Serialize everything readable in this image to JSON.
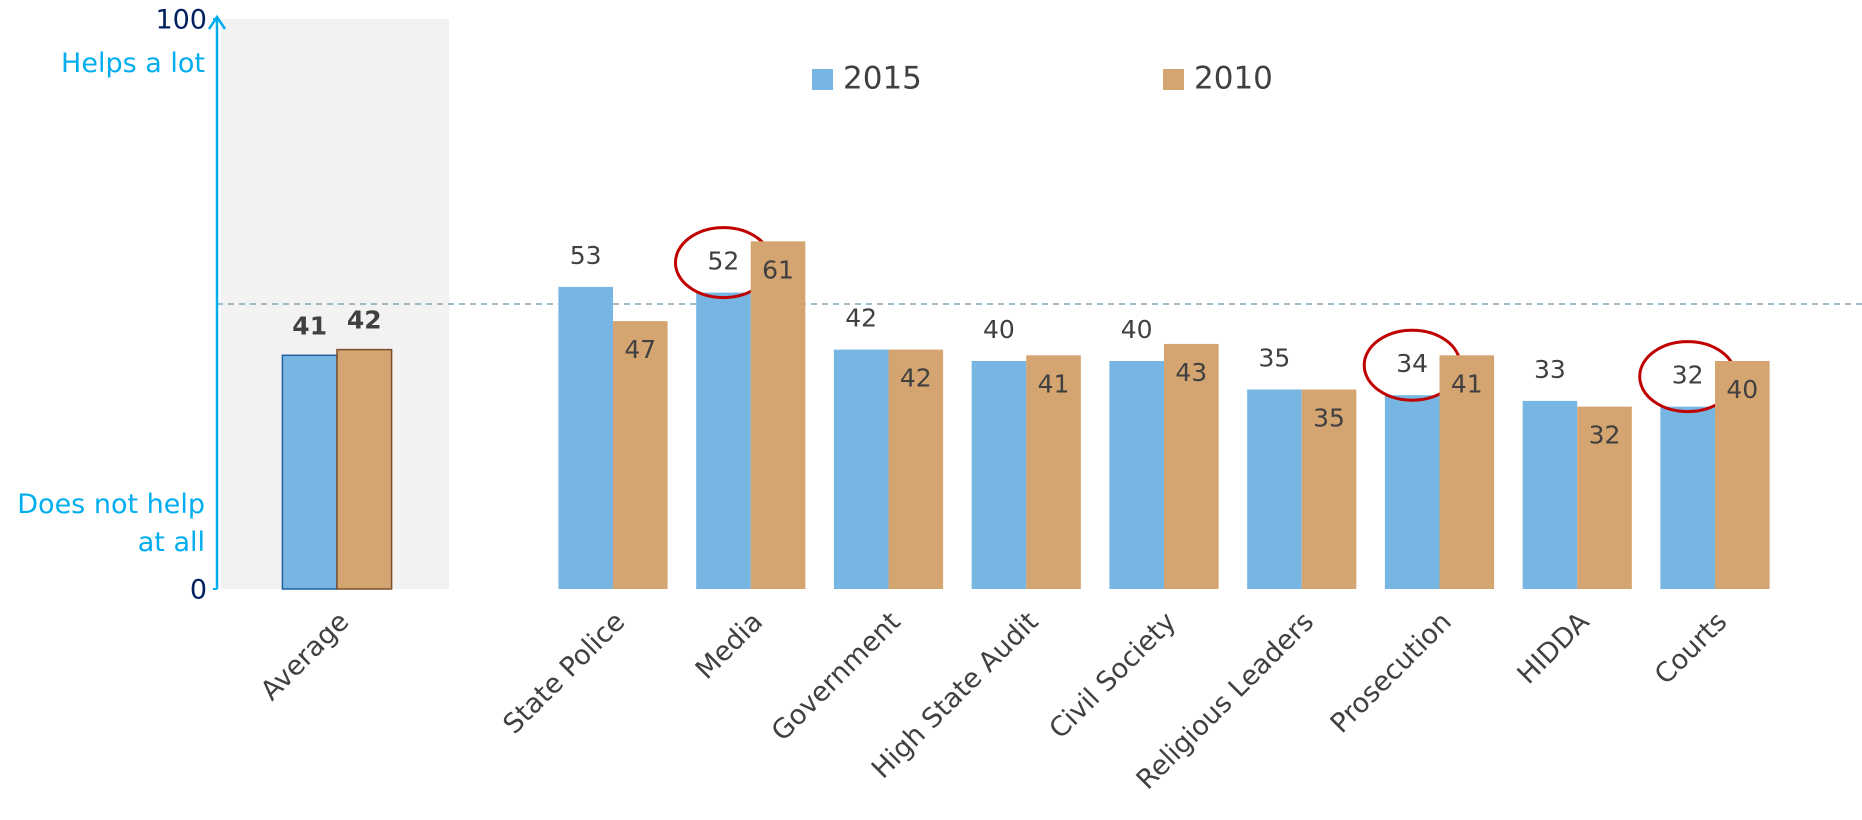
{
  "chart_data": {
    "type": "bar",
    "y_label_high": "Helps a lot",
    "y_label_low": "Does not help at all",
    "categories": [
      "Average",
      "State Police",
      "Media",
      "Government",
      "High State Audit",
      "Civil Society",
      "Religious Leaders",
      "Prosecution",
      "HIDDA",
      "Courts"
    ],
    "series": [
      {
        "name": "2015",
        "color": "#77b5e3",
        "values": [
          41,
          53,
          52,
          42,
          40,
          40,
          35,
          34,
          33,
          32
        ]
      },
      {
        "name": "2010",
        "color": "#d4a571",
        "values": [
          42,
          47,
          61,
          42,
          41,
          43,
          35,
          41,
          32,
          40
        ]
      }
    ],
    "ylim": [
      0,
      100
    ],
    "yticks": [
      0,
      100
    ],
    "reference_line": 50,
    "highlight": [
      2,
      7,
      9
    ],
    "highlight_color": "#c00000",
    "legend": "top"
  }
}
